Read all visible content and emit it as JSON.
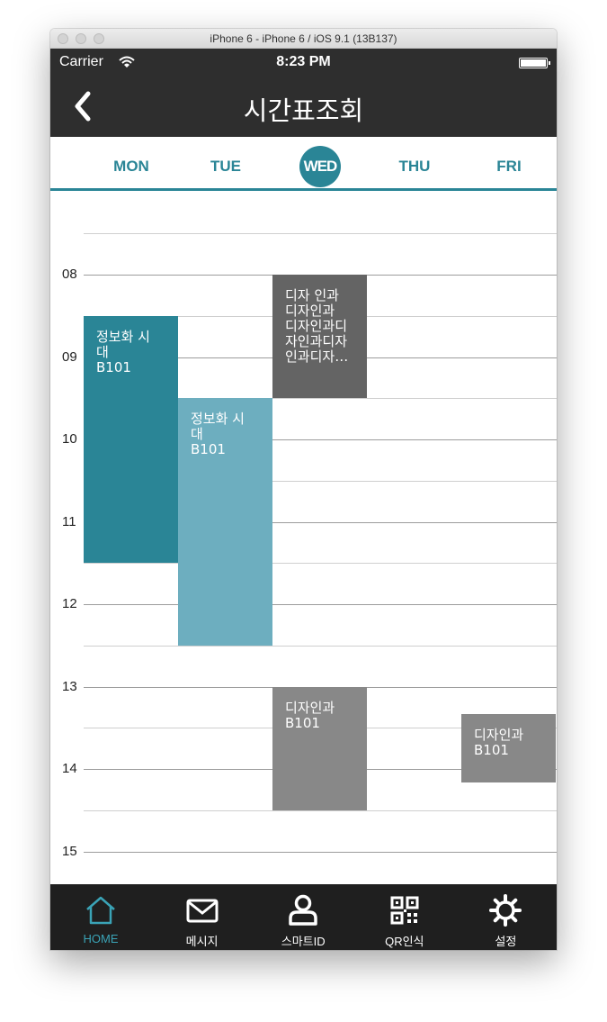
{
  "window": {
    "title": "iPhone 6 - iPhone 6 / iOS 9.1 (13B137)"
  },
  "status": {
    "carrier": "Carrier",
    "time": "8:23 PM"
  },
  "header": {
    "title": "시간표조회"
  },
  "colors": {
    "accent": "#2a8596",
    "light_accent": "#6daebf",
    "dark_gray": "#646464",
    "mid_gray": "#888888",
    "bar": "#2e2e2e",
    "tabbar": "#1f1f1f"
  },
  "days": [
    {
      "label": "MON",
      "active": false
    },
    {
      "label": "TUE",
      "active": false
    },
    {
      "label": "WED",
      "active": true
    },
    {
      "label": "THU",
      "active": false
    },
    {
      "label": "FRI",
      "active": false
    }
  ],
  "hours": [
    "08",
    "09",
    "10",
    "11",
    "12",
    "13",
    "14",
    "15"
  ],
  "classes": [
    {
      "day": 0,
      "start": "08:30",
      "end": "11:30",
      "title": "정보화 시\n대",
      "room": "B101",
      "color": "#2a8596"
    },
    {
      "day": 1,
      "start": "09:30",
      "end": "12:30",
      "title": "정보화 시\n대",
      "room": "B101",
      "color": "#6daebf"
    },
    {
      "day": 2,
      "start": "08:00",
      "end": "09:30",
      "title": "디자 인과\n디자인과\n디자인과디\n자인과디자\n인과디자…",
      "room": "",
      "color": "#646464"
    },
    {
      "day": 2,
      "start": "13:00",
      "end": "14:30",
      "title": "디자인과",
      "room": "B101",
      "color": "#888888"
    },
    {
      "day": 4,
      "start": "13:20",
      "end": "14:10",
      "title": "디자인과",
      "room": "B101",
      "color": "#888888"
    }
  ],
  "tabs": [
    {
      "label": "HOME",
      "icon": "home-icon",
      "active": true
    },
    {
      "label": "메시지",
      "icon": "mail-icon",
      "active": false
    },
    {
      "label": "스마트ID",
      "icon": "user-icon",
      "active": false
    },
    {
      "label": "QR인식",
      "icon": "qr-code-icon",
      "active": false
    },
    {
      "label": "설정",
      "icon": "gear-icon",
      "active": false
    }
  ]
}
